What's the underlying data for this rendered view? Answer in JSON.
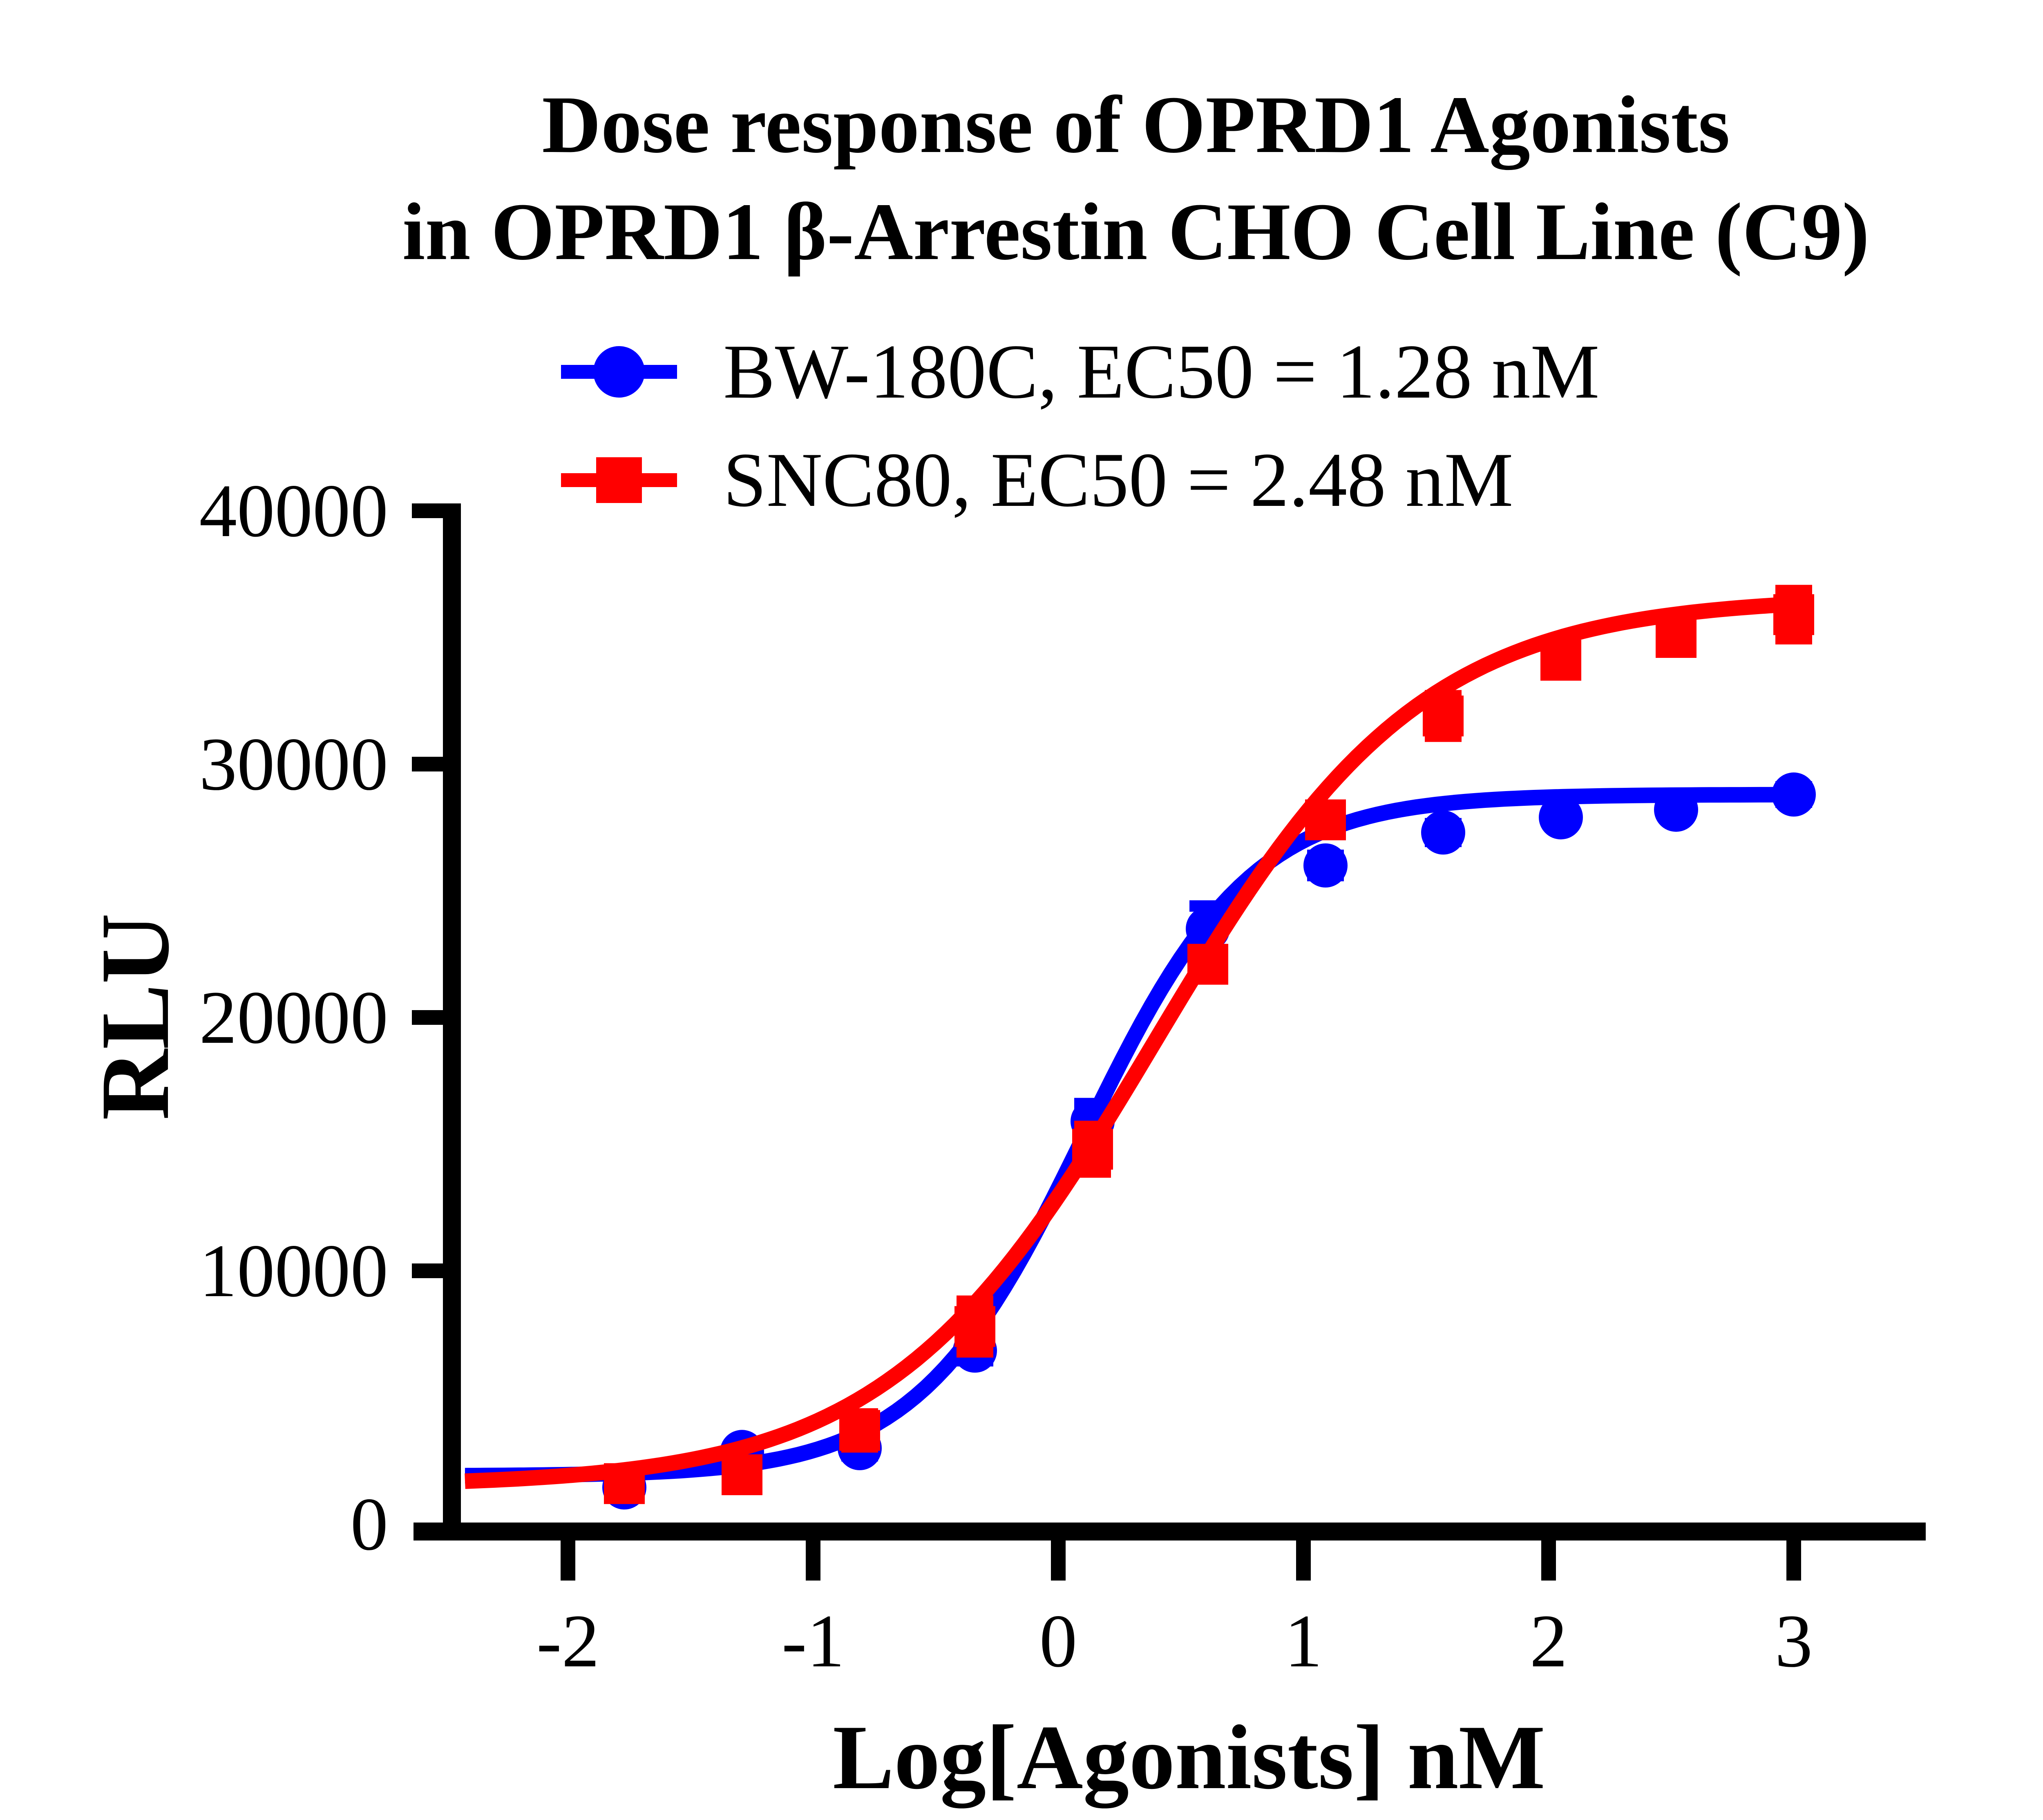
{
  "title": {
    "line1": "Dose response of OPRD1 Agonists",
    "line2": "in OPRD1 β-Arrestin CHO Cell Line (C9)"
  },
  "legend": {
    "items": [
      {
        "label": "BW-180C, EC50 = 1.28 nM",
        "marker": "circle",
        "color": "#0000ff"
      },
      {
        "label": "SNC80, EC50 = 2.48 nM",
        "marker": "square",
        "color": "#ff0000"
      }
    ]
  },
  "axes": {
    "x_label": "Log[Agonists] nM",
    "y_label": "RLU"
  },
  "chart_data": {
    "type": "scatter",
    "title": "Dose response of OPRD1 Agonists in OPRD1 β-Arrestin CHO Cell Line (C9)",
    "xlabel": "Log[Agonists] nM",
    "ylabel": "RLU",
    "xlim": [
      -2.47,
      3.54
    ],
    "ylim": [
      0,
      40000
    ],
    "x_ticks": [
      -2,
      -1,
      0,
      1,
      2,
      3
    ],
    "y_ticks": [
      0,
      10000,
      20000,
      30000,
      40000
    ],
    "grid": false,
    "legend_position": "top-left",
    "x": [
      -1.77,
      -1.29,
      -0.81,
      -0.34,
      0.14,
      0.61,
      1.09,
      1.57,
      2.05,
      2.52,
      3.0
    ],
    "series": [
      {
        "name": "BW-180C",
        "ec50_label": "BW-180C, EC50 = 1.28 nM",
        "ec50_nM": 1.28,
        "color": "#0000ff",
        "marker": "circle",
        "values": [
          1450,
          2850,
          3000,
          6850,
          15900,
          23500,
          26000,
          27300,
          27900,
          28200,
          28800
        ],
        "errors": [
          250,
          250,
          300,
          400,
          700,
          900,
          400,
          350,
          250,
          250,
          300
        ],
        "fit": {
          "bottom": 1900,
          "top": 28800,
          "logEC50": 0.107,
          "hill": 1.275
        }
      },
      {
        "name": "SNC80",
        "ec50_label": "SNC80, EC50 = 2.48 nM",
        "ec50_nM": 2.48,
        "color": "#ff0000",
        "marker": "square",
        "values": [
          1600,
          1950,
          3700,
          7800,
          14800,
          22100,
          27800,
          31900,
          34100,
          35000,
          35900
        ],
        "errors": [
          450,
          300,
          650,
          1000,
          900,
          500,
          450,
          800,
          350,
          350,
          950
        ],
        "fit": {
          "bottom": 1500,
          "top": 36600,
          "logEC50": 0.394,
          "hill": 0.8
        }
      }
    ]
  }
}
